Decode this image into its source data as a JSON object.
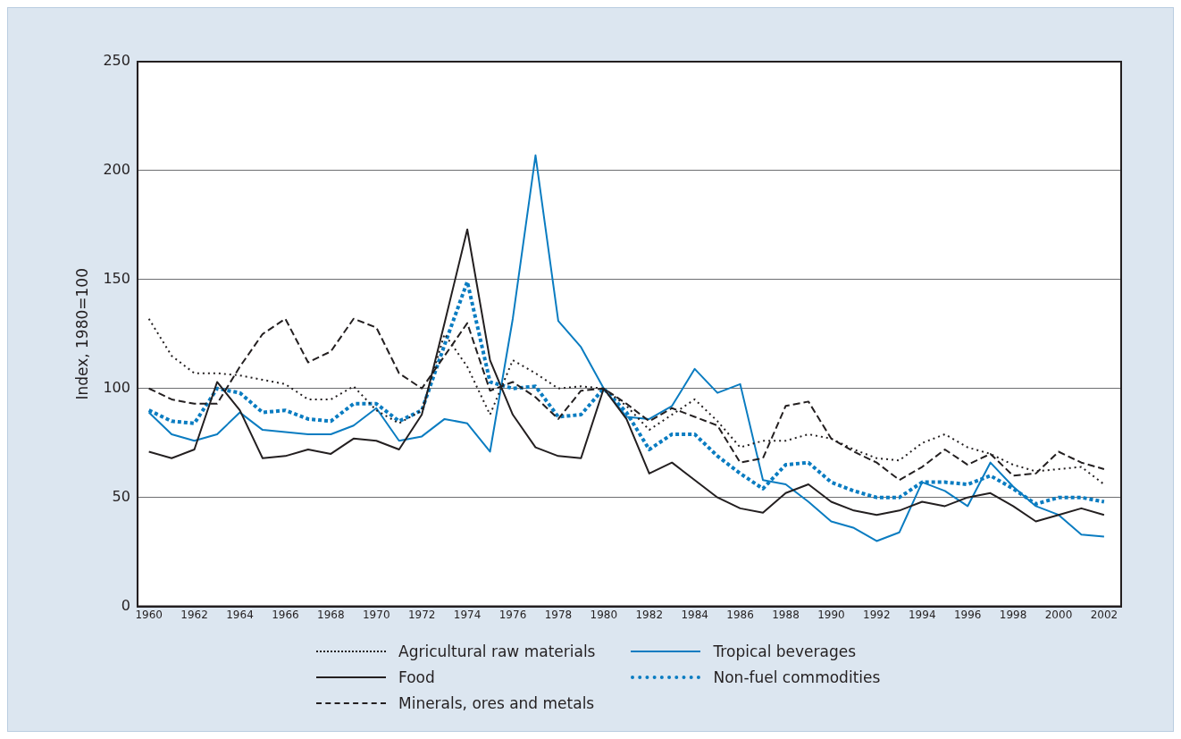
{
  "chart_data": {
    "type": "line",
    "ylabel": "Index, 1980=100",
    "x": [
      1960,
      1961,
      1962,
      1963,
      1964,
      1965,
      1966,
      1967,
      1968,
      1969,
      1970,
      1971,
      1972,
      1973,
      1974,
      1975,
      1976,
      1977,
      1978,
      1979,
      1980,
      1981,
      1982,
      1983,
      1984,
      1985,
      1986,
      1987,
      1988,
      1989,
      1990,
      1991,
      1992,
      1993,
      1994,
      1995,
      1996,
      1997,
      1998,
      1999,
      2000,
      2001,
      2002
    ],
    "xlim": [
      1959.5,
      2002.75
    ],
    "xticks": [
      1960,
      1962,
      1964,
      1966,
      1968,
      1970,
      1972,
      1974,
      1976,
      1978,
      1980,
      1982,
      1984,
      1986,
      1988,
      1990,
      1992,
      1994,
      1996,
      1998,
      2000,
      2002
    ],
    "ylim": [
      0,
      250
    ],
    "yticks": [
      0,
      50,
      100,
      150,
      200,
      250
    ],
    "grid": "y",
    "legend": "bottom",
    "marker": "none",
    "series": [
      {
        "name": "Agricultural raw materials",
        "color": "#231f20",
        "line_style": "dotted",
        "values": [
          132,
          115,
          107,
          107,
          106,
          104,
          102,
          95,
          95,
          101,
          90,
          84,
          90,
          125,
          110,
          88,
          113,
          107,
          100,
          101,
          100,
          92,
          81,
          88,
          95,
          85,
          73,
          76,
          76,
          79,
          77,
          72,
          68,
          67,
          75,
          79,
          73,
          70,
          65,
          62,
          63,
          64,
          56
        ]
      },
      {
        "name": "Food",
        "color": "#231f20",
        "line_style": "solid",
        "values": [
          71,
          68,
          72,
          103,
          90,
          68,
          69,
          72,
          70,
          77,
          76,
          72,
          88,
          130,
          173,
          113,
          88,
          73,
          69,
          68,
          100,
          86,
          61,
          66,
          58,
          50,
          45,
          43,
          52,
          56,
          48,
          44,
          42,
          44,
          48,
          46,
          50,
          52,
          46,
          39,
          42,
          45,
          42
        ]
      },
      {
        "name": "Minerals, ores and metals",
        "color": "#231f20",
        "line_style": "dashed",
        "values": [
          100,
          95,
          93,
          93,
          110,
          125,
          132,
          112,
          117,
          132,
          128,
          107,
          100,
          115,
          130,
          99,
          103,
          96,
          86,
          99,
          100,
          93,
          85,
          91,
          87,
          83,
          66,
          68,
          92,
          94,
          77,
          71,
          66,
          58,
          64,
          72,
          65,
          70,
          60,
          61,
          71,
          66,
          63
        ]
      },
      {
        "name": "Tropical beverages",
        "color": "#0a7cc1",
        "line_style": "solid",
        "values": [
          89,
          79,
          76,
          79,
          89,
          81,
          80,
          79,
          79,
          83,
          91,
          76,
          78,
          86,
          84,
          71,
          132,
          207,
          131,
          119,
          100,
          87,
          86,
          92,
          109,
          98,
          102,
          58,
          56,
          48,
          39,
          36,
          30,
          34,
          57,
          53,
          46,
          66,
          55,
          46,
          42,
          33,
          32
        ]
      },
      {
        "name": "Non-fuel commodities",
        "color": "#0a7cc1",
        "line_style": "dotted",
        "values": [
          90,
          85,
          84,
          100,
          98,
          89,
          90,
          86,
          85,
          93,
          93,
          85,
          90,
          120,
          149,
          103,
          100,
          101,
          87,
          88,
          100,
          89,
          72,
          79,
          79,
          69,
          61,
          54,
          65,
          66,
          57,
          53,
          50,
          50,
          57,
          57,
          56,
          60,
          54,
          47,
          50,
          50,
          48
        ]
      }
    ]
  }
}
